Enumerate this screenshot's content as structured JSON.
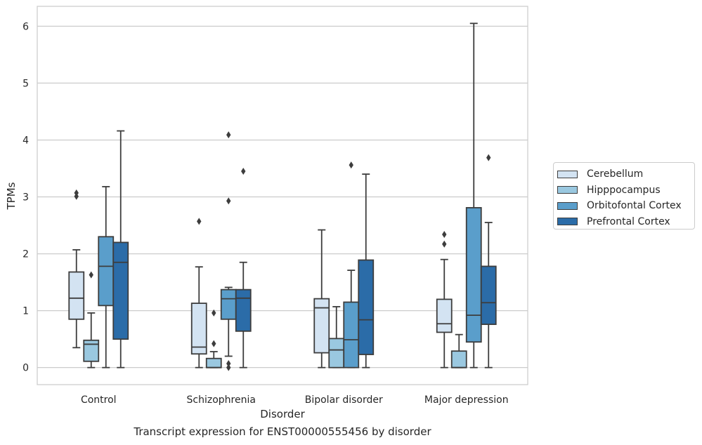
{
  "caption": "Transcript expression for ENST00000555456 by disorder",
  "chart_data": {
    "type": "box",
    "xlabel": "Disorder",
    "ylabel": "TPMs",
    "ylim": [
      -0.3,
      6.35
    ],
    "yticks": [
      0,
      1,
      2,
      3,
      4,
      5,
      6
    ],
    "categories": [
      "Control",
      "Schizophrenia",
      "Bipolar disorder",
      "Major depression"
    ],
    "grid": "horizontal",
    "legend_position": "right",
    "series": [
      {
        "name": "Cerebellum",
        "color": "#d3e3f2",
        "boxes": [
          {
            "whislo": 0.35,
            "q1": 0.85,
            "med": 1.22,
            "q3": 1.68,
            "whishi": 2.07,
            "fliers": [
              3.01,
              3.07
            ]
          },
          {
            "whislo": 0.0,
            "q1": 0.24,
            "med": 0.36,
            "q3": 1.13,
            "whishi": 1.77,
            "fliers": [
              2.57
            ]
          },
          {
            "whislo": 0.0,
            "q1": 0.26,
            "med": 1.05,
            "q3": 1.21,
            "whishi": 2.42,
            "fliers": []
          },
          {
            "whislo": 0.0,
            "q1": 0.62,
            "med": 0.77,
            "q3": 1.2,
            "whishi": 1.9,
            "fliers": [
              2.17,
              2.34
            ]
          }
        ]
      },
      {
        "name": "Hipppocampus",
        "color": "#9ac8e0",
        "boxes": [
          {
            "whislo": 0.0,
            "q1": 0.11,
            "med": 0.41,
            "q3": 0.48,
            "whishi": 0.96,
            "fliers": [
              1.63
            ]
          },
          {
            "whislo": 0.0,
            "q1": 0.0,
            "med": 0.0,
            "q3": 0.16,
            "whishi": 0.28,
            "fliers": [
              0.42,
              0.96
            ]
          },
          {
            "whislo": 0.0,
            "q1": 0.0,
            "med": 0.31,
            "q3": 0.51,
            "whishi": 1.07,
            "fliers": []
          },
          {
            "whislo": 0.0,
            "q1": 0.0,
            "med": 0.0,
            "q3": 0.29,
            "whishi": 0.58,
            "fliers": []
          }
        ]
      },
      {
        "name": "Orbitofontal Cortex",
        "color": "#5a9ecb",
        "boxes": [
          {
            "whislo": 0.0,
            "q1": 1.09,
            "med": 1.78,
            "q3": 2.3,
            "whishi": 3.18,
            "fliers": []
          },
          {
            "whislo": 0.2,
            "q1": 0.85,
            "med": 1.21,
            "q3": 1.37,
            "whishi": 1.41,
            "fliers": [
              0.0,
              0.07,
              2.93,
              4.09
            ]
          },
          {
            "whislo": 0.0,
            "q1": 0.0,
            "med": 0.49,
            "q3": 1.15,
            "whishi": 1.71,
            "fliers": [
              3.56
            ]
          },
          {
            "whislo": 0.0,
            "q1": 0.45,
            "med": 0.92,
            "q3": 2.81,
            "whishi": 6.05,
            "fliers": []
          }
        ]
      },
      {
        "name": "Prefrontal Cortex",
        "color": "#2b6ca8",
        "boxes": [
          {
            "whislo": 0.0,
            "q1": 0.5,
            "med": 1.85,
            "q3": 2.2,
            "whishi": 4.16,
            "fliers": []
          },
          {
            "whislo": 0.0,
            "q1": 0.64,
            "med": 1.22,
            "q3": 1.37,
            "whishi": 1.85,
            "fliers": [
              3.45
            ]
          },
          {
            "whislo": 0.0,
            "q1": 0.23,
            "med": 0.84,
            "q3": 1.89,
            "whishi": 3.4,
            "fliers": []
          },
          {
            "whislo": 0.0,
            "q1": 0.76,
            "med": 1.14,
            "q3": 1.78,
            "whishi": 2.55,
            "fliers": [
              3.69
            ]
          }
        ]
      }
    ]
  }
}
